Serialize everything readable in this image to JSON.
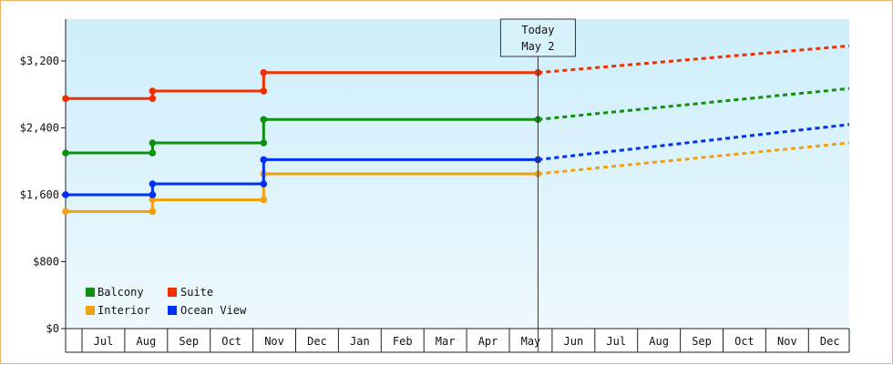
{
  "chart_data": {
    "type": "line",
    "today_marker": {
      "line1": "Today",
      "line2": "May 2",
      "x": "May 2"
    },
    "y_ticks": [
      {
        "value": 0,
        "label": "$0"
      },
      {
        "value": 800,
        "label": "$800"
      },
      {
        "value": 1600,
        "label": "$1,600"
      },
      {
        "value": 2400,
        "label": "$2,400"
      },
      {
        "value": 3200,
        "label": "$3,200"
      }
    ],
    "ylim": [
      0,
      3700
    ],
    "x_months": [
      "Jul",
      "Aug",
      "Sep",
      "Oct",
      "Nov",
      "Dec",
      "Jan",
      "Feb",
      "Mar",
      "Apr",
      "May",
      "Jun",
      "Jul",
      "Aug",
      "Sep",
      "Oct",
      "Nov",
      "Dec"
    ],
    "grid": false,
    "legend_position": "bottom-left",
    "series": [
      {
        "name": "Balcony",
        "color": "#109010",
        "steps": [
          {
            "x": 0,
            "y": 2100
          },
          {
            "x": 1.65,
            "y": 2220
          },
          {
            "x": 4.25,
            "y": 2500
          }
        ],
        "today_value": 2500,
        "projection_end": 2870
      },
      {
        "name": "Suite",
        "color": "#f03000",
        "steps": [
          {
            "x": 0,
            "y": 2750
          },
          {
            "x": 1.65,
            "y": 2840
          },
          {
            "x": 4.25,
            "y": 3060
          }
        ],
        "today_value": 3060,
        "projection_end": 3380
      },
      {
        "name": "Interior",
        "color": "#f0a010",
        "steps": [
          {
            "x": 0,
            "y": 1400
          },
          {
            "x": 1.65,
            "y": 1540
          },
          {
            "x": 4.25,
            "y": 1850
          }
        ],
        "today_value": 1850,
        "projection_end": 2220
      },
      {
        "name": "Ocean View",
        "color": "#0030f0",
        "steps": [
          {
            "x": 0,
            "y": 1600
          },
          {
            "x": 1.65,
            "y": 1730
          },
          {
            "x": 4.25,
            "y": 2020
          }
        ],
        "today_value": 2020,
        "projection_end": 2440
      }
    ],
    "today_x": 10.67,
    "projection_end_x": 18.5
  },
  "legend": {
    "balcony": "Balcony",
    "suite": "Suite",
    "interior": "Interior",
    "ocean_view": "Ocean View"
  }
}
